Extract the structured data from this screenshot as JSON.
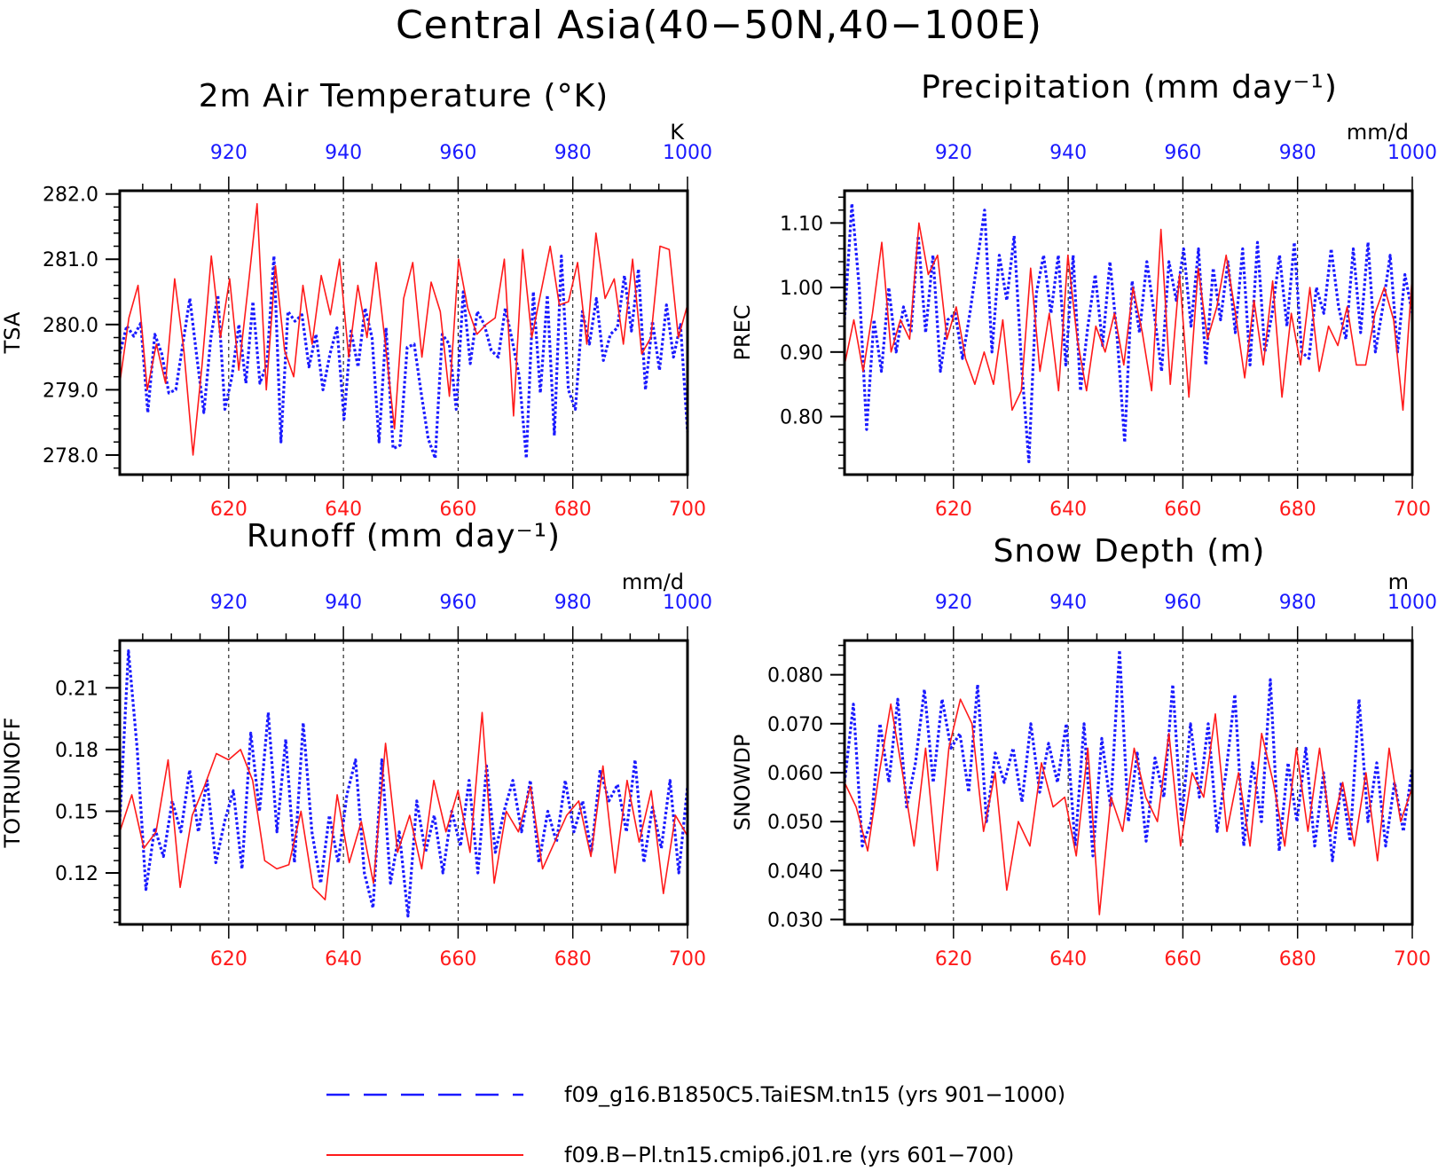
{
  "figure": {
    "title": "Central Asia(40−50N,40−100E)",
    "colors": {
      "blue_series": "#1a1aff",
      "red_series": "#ff1a1a",
      "axis": "#000000",
      "grid": "#000000"
    }
  },
  "legend": [
    {
      "label": "f09_g16.B1850C5.TaiESM.tn15 (yrs 901−1000)",
      "color": "#1a1aff",
      "style": "dashed"
    },
    {
      "label": "f09.B−Pl.tn15.cmip6.j01.re (yrs 601−700)",
      "color": "#ff1a1a",
      "style": "solid"
    }
  ],
  "chart_data": [
    {
      "type": "line",
      "title": "2m Air Temperature (°K)",
      "ylabel": "TSA",
      "unit": "K",
      "ylim": [
        277.7,
        282.05
      ],
      "yticks": [
        "282.0",
        "281.0",
        "280.0",
        "279.0",
        "278.0"
      ],
      "ytick_values": [
        282,
        281,
        280,
        279,
        278
      ],
      "xlim_bottom": [
        601,
        700
      ],
      "xticks_bottom": [
        620,
        640,
        660,
        680,
        700
      ],
      "xlim_top": [
        901,
        1000
      ],
      "xticks_top": [
        920,
        940,
        960,
        980,
        1000
      ],
      "grid_x": [
        620,
        640,
        660,
        680
      ],
      "series": [
        {
          "name": "f09_g16.B1850C5.TaiESM.tn15 (yrs 901−1000)",
          "axis": "top",
          "values": [
            279.55,
            279.98,
            279.82,
            280.02,
            278.65,
            279.85,
            279.55,
            278.95,
            279.0,
            279.7,
            280.4,
            279.5,
            278.65,
            279.8,
            280.45,
            278.7,
            279.2,
            280.0,
            279.1,
            280.35,
            279.1,
            279.4,
            281.05,
            278.2,
            280.2,
            280.05,
            280.15,
            279.35,
            279.85,
            279.0,
            279.55,
            279.95,
            278.55,
            279.9,
            279.35,
            280.25,
            279.8,
            278.2,
            279.95,
            278.1,
            278.15,
            279.65,
            279.7,
            278.95,
            278.25,
            277.95,
            279.85,
            279.7,
            278.7,
            280.5,
            279.4,
            280.2,
            280.0,
            279.6,
            279.5,
            280.25,
            279.75,
            279.2,
            277.95,
            280.5,
            278.95,
            280.45,
            278.3,
            281.05,
            279.0,
            278.7,
            280.2,
            279.7,
            280.4,
            279.45,
            279.85,
            279.95,
            280.75,
            279.9,
            280.85,
            279.0,
            280.05,
            279.3,
            280.3,
            279.5,
            280.0,
            278.35
          ]
        },
        {
          "name": "f09.B−Pl.tn15.cmip6.j01.re (yrs 601−700)",
          "axis": "bottom",
          "values": [
            279.1,
            280.1,
            280.6,
            279.0,
            279.7,
            279.1,
            280.7,
            279.6,
            278.0,
            279.4,
            281.05,
            279.8,
            280.7,
            279.3,
            280.55,
            281.85,
            279.0,
            280.9,
            279.6,
            279.2,
            280.6,
            279.7,
            280.75,
            280.15,
            281.0,
            279.5,
            280.6,
            279.8,
            280.95,
            279.7,
            278.4,
            280.4,
            280.95,
            279.5,
            280.65,
            280.2,
            278.9,
            281.0,
            280.25,
            279.85,
            280.0,
            280.1,
            281.0,
            278.6,
            281.15,
            279.8,
            280.5,
            281.2,
            280.3,
            280.35,
            280.95,
            279.7,
            281.4,
            280.4,
            280.7,
            279.7,
            281.0,
            279.55,
            279.8,
            281.2,
            281.15,
            279.8,
            280.3
          ]
        }
      ]
    },
    {
      "type": "line",
      "title": "Precipitation (mm day⁻¹)",
      "ylabel": "PREC",
      "unit": "mm/d",
      "ylim": [
        0.71,
        1.15
      ],
      "yticks": [
        "1.10",
        "1.00",
        "0.90",
        "0.80"
      ],
      "ytick_values": [
        1.1,
        1.0,
        0.9,
        0.8
      ],
      "xlim_bottom": [
        601,
        700
      ],
      "xticks_bottom": [
        620,
        640,
        660,
        680,
        700
      ],
      "xlim_top": [
        901,
        1000
      ],
      "xticks_top": [
        920,
        940,
        960,
        980,
        1000
      ],
      "grid_x": [
        620,
        640,
        660,
        680
      ],
      "series": [
        {
          "name": "f09_g16.B1850C5.TaiESM.tn15 (yrs 901−1000)",
          "axis": "top",
          "values": [
            0.95,
            1.13,
            1.0,
            0.78,
            0.95,
            0.87,
            1.0,
            0.9,
            0.97,
            0.93,
            1.08,
            0.93,
            1.05,
            0.87,
            0.95,
            0.96,
            0.89,
            0.96,
            1.04,
            1.12,
            0.9,
            1.05,
            0.98,
            1.08,
            0.88,
            0.73,
            0.99,
            1.05,
            0.96,
            1.05,
            0.88,
            1.05,
            0.84,
            0.94,
            1.02,
            0.91,
            1.04,
            0.92,
            0.76,
            1.01,
            0.93,
            1.04,
            0.96,
            0.87,
            1.04,
            0.98,
            1.06,
            0.94,
            1.06,
            0.88,
            1.03,
            0.95,
            1.04,
            0.93,
            1.06,
            0.88,
            1.07,
            0.9,
            0.96,
            1.05,
            0.94,
            1.07,
            0.9,
            0.89,
            1.0,
            0.96,
            1.06,
            0.97,
            0.92,
            1.06,
            0.93,
            1.07,
            0.9,
            0.97,
            1.05,
            0.9,
            1.02,
            0.96
          ]
        },
        {
          "name": "f09.B−Pl.tn15.cmip6.j01.re (yrs 601−700)",
          "axis": "bottom",
          "values": [
            0.88,
            0.95,
            0.87,
            0.96,
            1.07,
            0.9,
            0.95,
            0.92,
            1.1,
            1.02,
            1.05,
            0.92,
            0.97,
            0.89,
            0.85,
            0.9,
            0.85,
            0.95,
            0.81,
            0.84,
            1.03,
            0.87,
            0.96,
            0.84,
            1.05,
            0.92,
            0.84,
            0.94,
            0.9,
            0.96,
            0.88,
            1.0,
            0.93,
            0.84,
            1.09,
            0.85,
            1.02,
            0.83,
            1.03,
            0.92,
            0.97,
            1.05,
            0.96,
            0.86,
            0.98,
            0.88,
            1.01,
            0.83,
            0.96,
            0.88,
            1.0,
            0.87,
            0.94,
            0.91,
            0.97,
            0.88,
            0.88,
            0.96,
            1.0,
            0.95,
            0.81,
            1.02
          ]
        }
      ]
    },
    {
      "type": "line",
      "title": "Runoff (mm day⁻¹)",
      "ylabel": "TOTRUNOFF",
      "unit": "mm/d",
      "ylim": [
        0.095,
        0.233
      ],
      "yticks": [
        "0.21",
        "0.18",
        "0.15",
        "0.12"
      ],
      "ytick_values": [
        0.21,
        0.18,
        0.15,
        0.12
      ],
      "xlim_bottom": [
        601,
        700
      ],
      "xticks_bottom": [
        620,
        640,
        660,
        680,
        700
      ],
      "xlim_top": [
        901,
        1000
      ],
      "xticks_top": [
        920,
        940,
        960,
        980,
        1000
      ],
      "grid_x": [
        620,
        640,
        660,
        680
      ],
      "series": [
        {
          "name": "f09_g16.B1850C5.TaiESM.tn15 (yrs 901−1000)",
          "axis": "top",
          "values": [
            0.145,
            0.228,
            0.18,
            0.112,
            0.142,
            0.128,
            0.155,
            0.14,
            0.17,
            0.14,
            0.165,
            0.125,
            0.145,
            0.16,
            0.122,
            0.188,
            0.15,
            0.198,
            0.14,
            0.185,
            0.125,
            0.193,
            0.14,
            0.115,
            0.148,
            0.125,
            0.158,
            0.175,
            0.12,
            0.103,
            0.175,
            0.115,
            0.14,
            0.099,
            0.155,
            0.13,
            0.148,
            0.12,
            0.15,
            0.133,
            0.165,
            0.12,
            0.172,
            0.13,
            0.15,
            0.165,
            0.14,
            0.165,
            0.125,
            0.15,
            0.135,
            0.165,
            0.14,
            0.155,
            0.13,
            0.17,
            0.155,
            0.163,
            0.14,
            0.175,
            0.125,
            0.152,
            0.132,
            0.165,
            0.12,
            0.162
          ]
        },
        {
          "name": "f09.B−Pl.tn15.cmip6.j01.re (yrs 601−700)",
          "axis": "bottom",
          "values": [
            0.14,
            0.158,
            0.132,
            0.14,
            0.175,
            0.113,
            0.148,
            0.162,
            0.178,
            0.175,
            0.18,
            0.165,
            0.126,
            0.122,
            0.124,
            0.15,
            0.113,
            0.107,
            0.158,
            0.125,
            0.145,
            0.115,
            0.183,
            0.13,
            0.148,
            0.122,
            0.165,
            0.14,
            0.16,
            0.13,
            0.198,
            0.115,
            0.15,
            0.14,
            0.162,
            0.122,
            0.135,
            0.148,
            0.155,
            0.128,
            0.172,
            0.12,
            0.165,
            0.135,
            0.16,
            0.11,
            0.148,
            0.138
          ]
        }
      ]
    },
    {
      "type": "line",
      "title": "Snow Depth (m)",
      "ylabel": "SNOWDP",
      "unit": "m",
      "ylim": [
        0.029,
        0.087
      ],
      "yticks": [
        "0.080",
        "0.070",
        "0.060",
        "0.050",
        "0.040",
        "0.030"
      ],
      "ytick_values": [
        0.08,
        0.07,
        0.06,
        0.05,
        0.04,
        0.03
      ],
      "xlim_bottom": [
        601,
        700
      ],
      "xticks_bottom": [
        620,
        640,
        660,
        680,
        700
      ],
      "xlim_top": [
        901,
        1000
      ],
      "xticks_top": [
        920,
        940,
        960,
        980,
        1000
      ],
      "grid_x": [
        620,
        640,
        660,
        680
      ],
      "series": [
        {
          "name": "f09_g16.B1850C5.TaiESM.tn15 (yrs 901−1000)",
          "axis": "top",
          "values": [
            0.058,
            0.074,
            0.045,
            0.05,
            0.07,
            0.058,
            0.075,
            0.053,
            0.062,
            0.077,
            0.058,
            0.075,
            0.065,
            0.068,
            0.056,
            0.078,
            0.05,
            0.064,
            0.058,
            0.065,
            0.054,
            0.07,
            0.056,
            0.066,
            0.058,
            0.07,
            0.045,
            0.07,
            0.043,
            0.067,
            0.053,
            0.085,
            0.05,
            0.064,
            0.046,
            0.063,
            0.055,
            0.078,
            0.05,
            0.07,
            0.055,
            0.07,
            0.048,
            0.06,
            0.076,
            0.045,
            0.062,
            0.05,
            0.079,
            0.044,
            0.062,
            0.05,
            0.065,
            0.045,
            0.06,
            0.042,
            0.058,
            0.046,
            0.075,
            0.05,
            0.062,
            0.045,
            0.058,
            0.048,
            0.061
          ]
        },
        {
          "name": "f09.B−Pl.tn15.cmip6.j01.re (yrs 601−700)",
          "axis": "bottom",
          "values": [
            0.058,
            0.053,
            0.044,
            0.06,
            0.074,
            0.06,
            0.045,
            0.065,
            0.04,
            0.065,
            0.075,
            0.07,
            0.048,
            0.06,
            0.036,
            0.05,
            0.045,
            0.062,
            0.053,
            0.055,
            0.043,
            0.065,
            0.031,
            0.055,
            0.048,
            0.065,
            0.055,
            0.05,
            0.068,
            0.045,
            0.06,
            0.055,
            0.072,
            0.048,
            0.06,
            0.045,
            0.068,
            0.058,
            0.045,
            0.065,
            0.048,
            0.065,
            0.048,
            0.058,
            0.045,
            0.06,
            0.042,
            0.065,
            0.05,
            0.057
          ]
        }
      ]
    }
  ]
}
